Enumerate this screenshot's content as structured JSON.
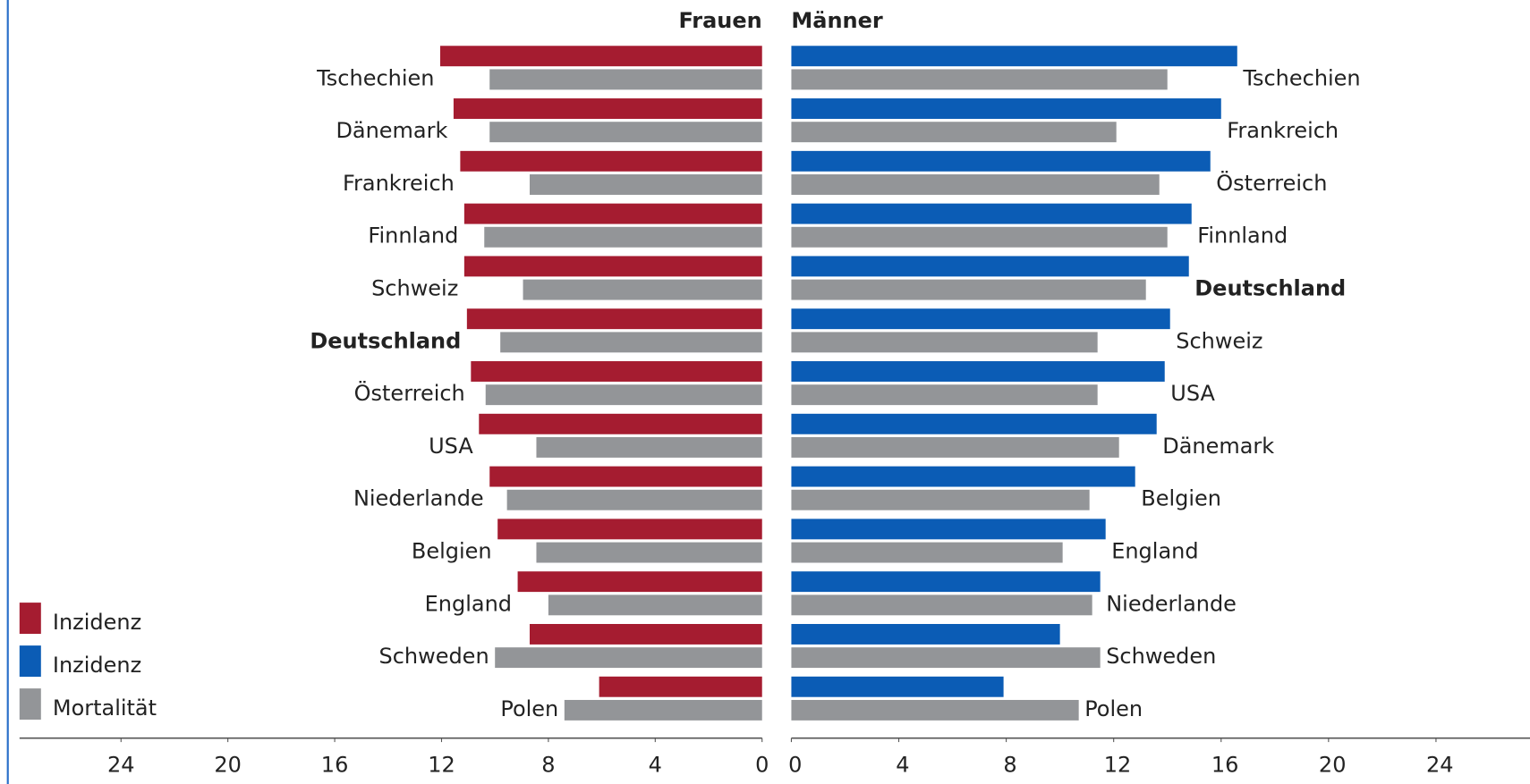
{
  "chart_data": [
    {
      "type": "bar",
      "orientation": "horizontal",
      "direction": "left",
      "title": "Frauen",
      "categories": [
        "Tschechien",
        "Dänemark",
        "Frankreich",
        "Finnland",
        "Schweiz",
        "Deutschland",
        "Österreich",
        "USA",
        "Niederlande",
        "Belgien",
        "England",
        "Schweden",
        "Polen"
      ],
      "highlight": "Deutschland",
      "series": [
        {
          "name": "Inzidenz",
          "color": "#a51c30",
          "values": [
            12.05,
            11.55,
            11.3,
            11.15,
            11.15,
            11.05,
            10.9,
            10.6,
            10.2,
            9.9,
            9.15,
            8.7,
            6.1
          ]
        },
        {
          "name": "Mortalität",
          "color": "#939598",
          "values": [
            10.2,
            10.2,
            8.7,
            10.4,
            8.95,
            9.8,
            10.35,
            8.45,
            9.55,
            8.45,
            8.0,
            10.0,
            7.4
          ]
        }
      ],
      "xlim": [
        0,
        27.8
      ],
      "xticks": [
        0,
        4,
        8,
        12,
        16,
        20,
        24
      ],
      "grid": false,
      "legend": "lower left"
    },
    {
      "type": "bar",
      "orientation": "horizontal",
      "direction": "right",
      "title": "Männer",
      "categories": [
        "Tschechien",
        "Frankreich",
        "Österreich",
        "Finnland",
        "Deutschland",
        "Schweiz",
        "USA",
        "Dänemark",
        "Belgien",
        "England",
        "Niederlande",
        "Schweden",
        "Polen"
      ],
      "highlight": "Deutschland",
      "series": [
        {
          "name": "Inzidenz",
          "color": "#0b5cb5",
          "values": [
            16.6,
            16.0,
            15.6,
            14.9,
            14.8,
            14.1,
            13.9,
            13.6,
            12.8,
            11.7,
            11.5,
            10.0,
            7.9
          ]
        },
        {
          "name": "Mortalität",
          "color": "#939598",
          "values": [
            14.0,
            12.1,
            13.7,
            14.0,
            13.2,
            11.4,
            11.4,
            12.2,
            11.1,
            10.1,
            11.2,
            11.5,
            10.7
          ]
        }
      ],
      "xlim": [
        0,
        27.5
      ],
      "xticks": [
        0,
        4,
        8,
        12,
        16,
        20,
        24
      ],
      "grid": false
    }
  ]
}
